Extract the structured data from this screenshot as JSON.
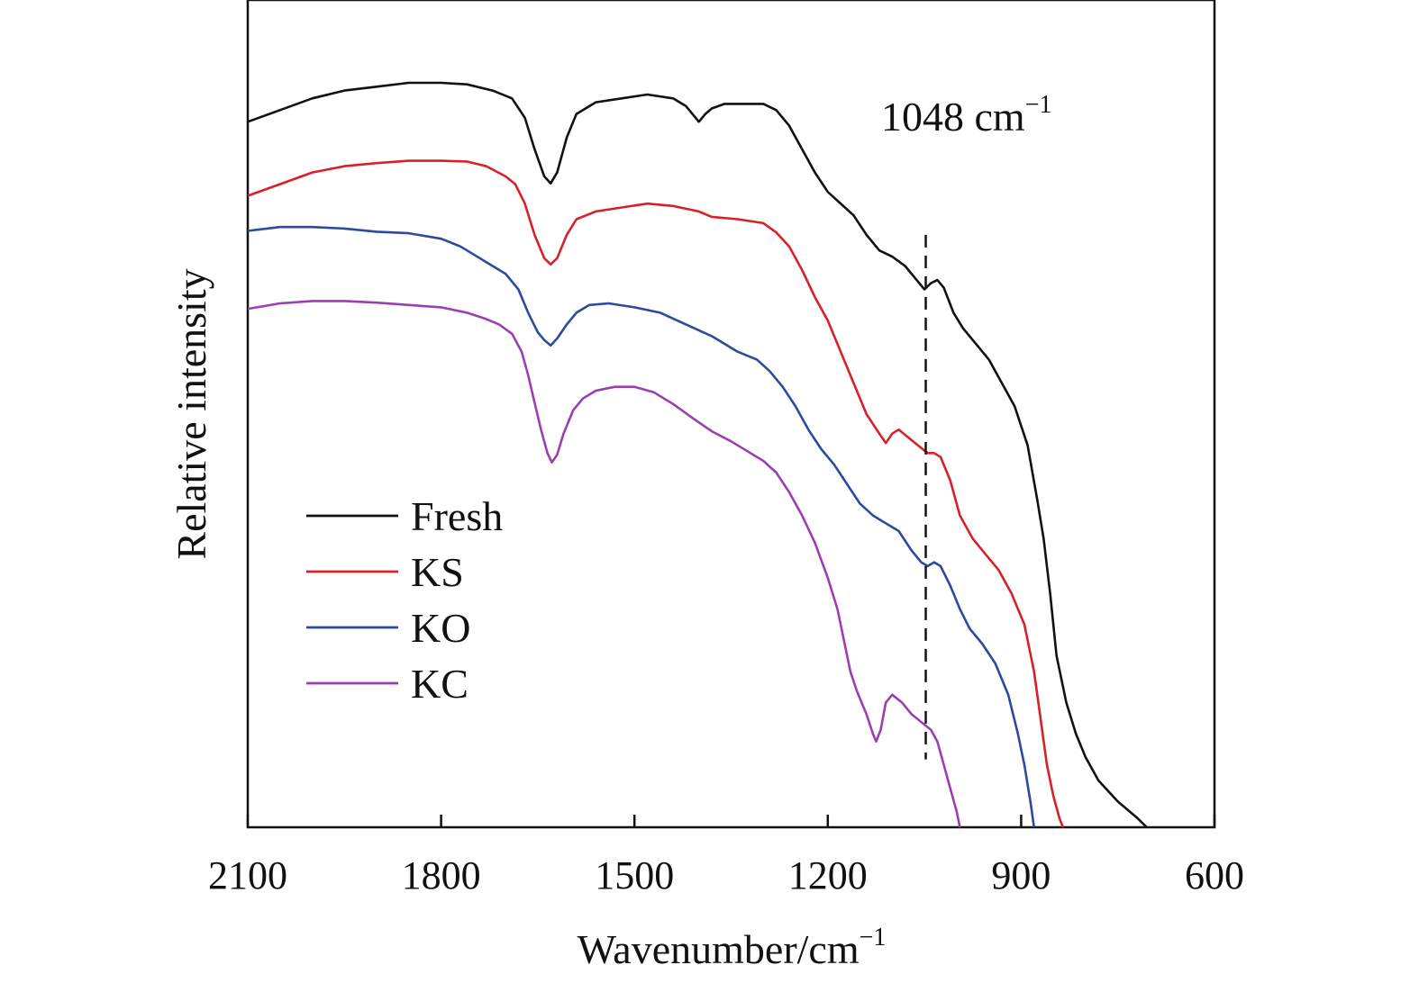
{
  "chart_data": {
    "type": "line",
    "title": "",
    "xlabel": "Wavenumber/cm",
    "xlabel_sup": "−1",
    "ylabel": "Relative intensity",
    "xlim": [
      2100,
      600
    ],
    "x_reversed": true,
    "ylim": [
      0,
      1
    ],
    "y_ticks_shown": false,
    "grid": false,
    "legend_position": "center-left",
    "x_ticks": [
      {
        "value": 2100,
        "label": "2100"
      },
      {
        "value": 1800,
        "label": "1800"
      },
      {
        "value": 1500,
        "label": "1500"
      },
      {
        "value": 1200,
        "label": "1200"
      },
      {
        "value": 900,
        "label": "900"
      },
      {
        "value": 600,
        "label": "600"
      }
    ],
    "annotations": [
      {
        "text": "1048 cm",
        "sup": "−1",
        "x": 1048,
        "y_from": 0.087,
        "y_to": 0.76
      }
    ],
    "series": [
      {
        "name": "Fresh",
        "color": "#111111",
        "points": [
          [
            2100,
            0.905
          ],
          [
            2050,
            0.92
          ],
          [
            2000,
            0.935
          ],
          [
            1950,
            0.945
          ],
          [
            1900,
            0.95
          ],
          [
            1850,
            0.955
          ],
          [
            1800,
            0.955
          ],
          [
            1760,
            0.953
          ],
          [
            1720,
            0.945
          ],
          [
            1690,
            0.935
          ],
          [
            1670,
            0.91
          ],
          [
            1655,
            0.87
          ],
          [
            1640,
            0.835
          ],
          [
            1630,
            0.826
          ],
          [
            1620,
            0.84
          ],
          [
            1605,
            0.885
          ],
          [
            1590,
            0.915
          ],
          [
            1560,
            0.93
          ],
          [
            1520,
            0.935
          ],
          [
            1480,
            0.94
          ],
          [
            1440,
            0.935
          ],
          [
            1420,
            0.925
          ],
          [
            1400,
            0.905
          ],
          [
            1390,
            0.915
          ],
          [
            1380,
            0.922
          ],
          [
            1360,
            0.928
          ],
          [
            1340,
            0.928
          ],
          [
            1300,
            0.928
          ],
          [
            1280,
            0.92
          ],
          [
            1260,
            0.9
          ],
          [
            1240,
            0.87
          ],
          [
            1220,
            0.84
          ],
          [
            1200,
            0.815
          ],
          [
            1180,
            0.8
          ],
          [
            1160,
            0.785
          ],
          [
            1140,
            0.76
          ],
          [
            1120,
            0.74
          ],
          [
            1100,
            0.732
          ],
          [
            1080,
            0.72
          ],
          [
            1060,
            0.7
          ],
          [
            1050,
            0.69
          ],
          [
            1040,
            0.698
          ],
          [
            1030,
            0.702
          ],
          [
            1020,
            0.692
          ],
          [
            1005,
            0.66
          ],
          [
            990,
            0.64
          ],
          [
            970,
            0.62
          ],
          [
            950,
            0.6
          ],
          [
            930,
            0.57
          ],
          [
            910,
            0.54
          ],
          [
            890,
            0.49
          ],
          [
            875,
            0.42
          ],
          [
            865,
            0.37
          ],
          [
            855,
            0.3
          ],
          [
            845,
            0.22
          ],
          [
            830,
            0.16
          ],
          [
            815,
            0.12
          ],
          [
            800,
            0.09
          ],
          [
            780,
            0.06
          ],
          [
            750,
            0.033
          ],
          [
            720,
            0.012
          ],
          [
            705,
            0.0
          ]
        ]
      },
      {
        "name": "KS",
        "color": "#d9202a",
        "points": [
          [
            2100,
            0.81
          ],
          [
            2050,
            0.825
          ],
          [
            2000,
            0.84
          ],
          [
            1950,
            0.848
          ],
          [
            1900,
            0.852
          ],
          [
            1850,
            0.855
          ],
          [
            1800,
            0.855
          ],
          [
            1760,
            0.854
          ],
          [
            1730,
            0.848
          ],
          [
            1700,
            0.835
          ],
          [
            1685,
            0.825
          ],
          [
            1670,
            0.8
          ],
          [
            1655,
            0.76
          ],
          [
            1640,
            0.73
          ],
          [
            1630,
            0.722
          ],
          [
            1620,
            0.73
          ],
          [
            1605,
            0.76
          ],
          [
            1590,
            0.78
          ],
          [
            1560,
            0.79
          ],
          [
            1520,
            0.795
          ],
          [
            1480,
            0.8
          ],
          [
            1440,
            0.797
          ],
          [
            1400,
            0.79
          ],
          [
            1380,
            0.783
          ],
          [
            1340,
            0.78
          ],
          [
            1300,
            0.775
          ],
          [
            1280,
            0.763
          ],
          [
            1260,
            0.745
          ],
          [
            1240,
            0.715
          ],
          [
            1220,
            0.68
          ],
          [
            1200,
            0.65
          ],
          [
            1180,
            0.61
          ],
          [
            1160,
            0.57
          ],
          [
            1140,
            0.53
          ],
          [
            1120,
            0.505
          ],
          [
            1110,
            0.493
          ],
          [
            1100,
            0.505
          ],
          [
            1090,
            0.51
          ],
          [
            1075,
            0.5
          ],
          [
            1060,
            0.49
          ],
          [
            1045,
            0.48
          ],
          [
            1035,
            0.48
          ],
          [
            1025,
            0.475
          ],
          [
            1010,
            0.445
          ],
          [
            995,
            0.4
          ],
          [
            975,
            0.37
          ],
          [
            955,
            0.35
          ],
          [
            935,
            0.33
          ],
          [
            915,
            0.3
          ],
          [
            895,
            0.26
          ],
          [
            880,
            0.2
          ],
          [
            870,
            0.14
          ],
          [
            860,
            0.08
          ],
          [
            850,
            0.04
          ],
          [
            840,
            0.01
          ],
          [
            835,
            0.0
          ]
        ]
      },
      {
        "name": "KO",
        "color": "#2c4a9e",
        "points": [
          [
            2100,
            0.765
          ],
          [
            2050,
            0.77
          ],
          [
            2000,
            0.77
          ],
          [
            1950,
            0.768
          ],
          [
            1900,
            0.764
          ],
          [
            1850,
            0.762
          ],
          [
            1800,
            0.755
          ],
          [
            1770,
            0.745
          ],
          [
            1740,
            0.73
          ],
          [
            1720,
            0.72
          ],
          [
            1700,
            0.71
          ],
          [
            1680,
            0.69
          ],
          [
            1665,
            0.66
          ],
          [
            1650,
            0.635
          ],
          [
            1640,
            0.625
          ],
          [
            1630,
            0.618
          ],
          [
            1620,
            0.627
          ],
          [
            1605,
            0.645
          ],
          [
            1590,
            0.66
          ],
          [
            1570,
            0.67
          ],
          [
            1540,
            0.672
          ],
          [
            1500,
            0.667
          ],
          [
            1460,
            0.66
          ],
          [
            1420,
            0.645
          ],
          [
            1380,
            0.63
          ],
          [
            1340,
            0.61
          ],
          [
            1310,
            0.6
          ],
          [
            1290,
            0.585
          ],
          [
            1270,
            0.565
          ],
          [
            1250,
            0.54
          ],
          [
            1230,
            0.51
          ],
          [
            1210,
            0.485
          ],
          [
            1190,
            0.465
          ],
          [
            1170,
            0.44
          ],
          [
            1150,
            0.415
          ],
          [
            1130,
            0.4
          ],
          [
            1110,
            0.39
          ],
          [
            1090,
            0.38
          ],
          [
            1070,
            0.355
          ],
          [
            1055,
            0.34
          ],
          [
            1045,
            0.335
          ],
          [
            1035,
            0.34
          ],
          [
            1025,
            0.335
          ],
          [
            1010,
            0.31
          ],
          [
            995,
            0.28
          ],
          [
            980,
            0.255
          ],
          [
            960,
            0.235
          ],
          [
            940,
            0.21
          ],
          [
            920,
            0.17
          ],
          [
            905,
            0.12
          ],
          [
            895,
            0.08
          ],
          [
            885,
            0.03
          ],
          [
            880,
            0.0
          ]
        ]
      },
      {
        "name": "KC",
        "color": "#9b3fb0",
        "points": [
          [
            2100,
            0.665
          ],
          [
            2050,
            0.672
          ],
          [
            2000,
            0.675
          ],
          [
            1950,
            0.675
          ],
          [
            1900,
            0.673
          ],
          [
            1850,
            0.67
          ],
          [
            1800,
            0.667
          ],
          [
            1760,
            0.66
          ],
          [
            1730,
            0.652
          ],
          [
            1710,
            0.645
          ],
          [
            1690,
            0.633
          ],
          [
            1675,
            0.61
          ],
          [
            1665,
            0.58
          ],
          [
            1655,
            0.545
          ],
          [
            1645,
            0.51
          ],
          [
            1635,
            0.48
          ],
          [
            1628,
            0.468
          ],
          [
            1620,
            0.478
          ],
          [
            1610,
            0.505
          ],
          [
            1595,
            0.535
          ],
          [
            1580,
            0.55
          ],
          [
            1560,
            0.56
          ],
          [
            1530,
            0.565
          ],
          [
            1500,
            0.565
          ],
          [
            1470,
            0.558
          ],
          [
            1440,
            0.543
          ],
          [
            1410,
            0.525
          ],
          [
            1380,
            0.508
          ],
          [
            1350,
            0.495
          ],
          [
            1320,
            0.48
          ],
          [
            1300,
            0.47
          ],
          [
            1280,
            0.455
          ],
          [
            1260,
            0.43
          ],
          [
            1240,
            0.4
          ],
          [
            1220,
            0.365
          ],
          [
            1200,
            0.32
          ],
          [
            1185,
            0.28
          ],
          [
            1175,
            0.24
          ],
          [
            1165,
            0.2
          ],
          [
            1155,
            0.175
          ],
          [
            1140,
            0.145
          ],
          [
            1130,
            0.12
          ],
          [
            1125,
            0.11
          ],
          [
            1118,
            0.125
          ],
          [
            1110,
            0.16
          ],
          [
            1100,
            0.17
          ],
          [
            1085,
            0.16
          ],
          [
            1070,
            0.145
          ],
          [
            1055,
            0.135
          ],
          [
            1040,
            0.125
          ],
          [
            1030,
            0.11
          ],
          [
            1020,
            0.08
          ],
          [
            1010,
            0.05
          ],
          [
            1000,
            0.02
          ],
          [
            995,
            0.0
          ]
        ]
      }
    ]
  }
}
